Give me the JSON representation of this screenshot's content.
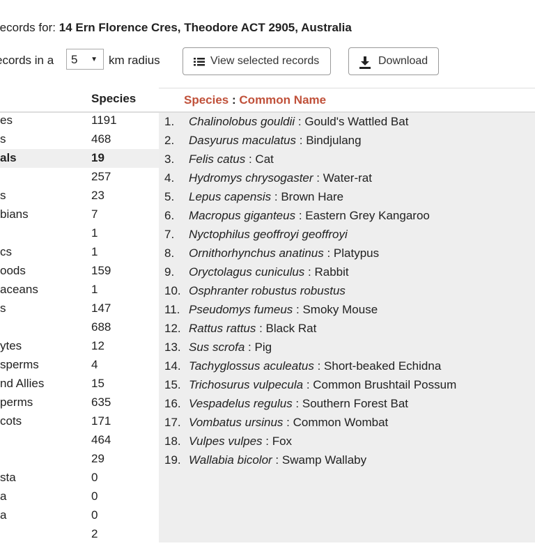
{
  "heading": {
    "prefix": "records for:",
    "address": "14 Ern Florence Cres, Theodore ACT 2905, Australia"
  },
  "radius": {
    "pre_label": "ecords in a",
    "value": "5",
    "post_label": "km radius"
  },
  "buttons": {
    "view_selected": "View selected records",
    "download": "Download"
  },
  "groups_table": {
    "header_species": "Species",
    "rows": [
      {
        "name": "es",
        "count": "1191"
      },
      {
        "name": "s",
        "count": "468"
      },
      {
        "name": "als",
        "count": "19",
        "selected": true
      },
      {
        "name": "",
        "count": "257"
      },
      {
        "name": "s",
        "count": "23"
      },
      {
        "name": "bians",
        "count": "7"
      },
      {
        "name": "",
        "count": "1"
      },
      {
        "name": "cs",
        "count": "1"
      },
      {
        "name": "oods",
        "count": "159"
      },
      {
        "name": "aceans",
        "count": "1"
      },
      {
        "name": "s",
        "count": "147"
      },
      {
        "name": "",
        "count": "688"
      },
      {
        "name": "ytes",
        "count": "12"
      },
      {
        "name": "sperms",
        "count": "4"
      },
      {
        "name": "nd Allies",
        "count": "15"
      },
      {
        "name": "perms",
        "count": "635"
      },
      {
        "name": "cots",
        "count": "171"
      },
      {
        "name": "",
        "count": "464"
      },
      {
        "name": "",
        "count": "29"
      },
      {
        "name": "sta",
        "count": "0"
      },
      {
        "name": "a",
        "count": "0"
      },
      {
        "name": "a",
        "count": "0"
      },
      {
        "name": "",
        "count": "2"
      }
    ]
  },
  "species_panel": {
    "header_species": "Species",
    "header_sep": ":",
    "header_common": "Common Name",
    "items": [
      {
        "num": "1.",
        "sci": "Chalinolobus gouldii",
        "sep": " : ",
        "common": "Gould's Wattled Bat"
      },
      {
        "num": "2.",
        "sci": "Dasyurus maculatus",
        "sep": " : ",
        "common": "Bindjulang"
      },
      {
        "num": "3.",
        "sci": "Felis catus",
        "sep": " : ",
        "common": "Cat"
      },
      {
        "num": "4.",
        "sci": "Hydromys chrysogaster",
        "sep": " : ",
        "common": "Water-rat"
      },
      {
        "num": "5.",
        "sci": "Lepus capensis",
        "sep": " : ",
        "common": "Brown Hare"
      },
      {
        "num": "6.",
        "sci": "Macropus giganteus",
        "sep": " : ",
        "common": "Eastern Grey Kangaroo"
      },
      {
        "num": "7.",
        "sci": "Nyctophilus geoffroyi geoffroyi",
        "sep": "",
        "common": ""
      },
      {
        "num": "8.",
        "sci": "Ornithorhynchus anatinus",
        "sep": " : ",
        "common": "Platypus"
      },
      {
        "num": "9.",
        "sci": "Oryctolagus cuniculus",
        "sep": " : ",
        "common": "Rabbit"
      },
      {
        "num": "10.",
        "sci": "Osphranter robustus robustus",
        "sep": "",
        "common": ""
      },
      {
        "num": "11.",
        "sci": "Pseudomys fumeus",
        "sep": " : ",
        "common": "Smoky Mouse"
      },
      {
        "num": "12.",
        "sci": "Rattus rattus",
        "sep": " : ",
        "common": "Black Rat"
      },
      {
        "num": "13.",
        "sci": "Sus scrofa",
        "sep": " : ",
        "common": "Pig"
      },
      {
        "num": "14.",
        "sci": "Tachyglossus aculeatus",
        "sep": " : ",
        "common": "Short-beaked Echidna"
      },
      {
        "num": "15.",
        "sci": "Trichosurus vulpecula",
        "sep": " : ",
        "common": "Common Brushtail Possum"
      },
      {
        "num": "16.",
        "sci": "Vespadelus regulus",
        "sep": " : ",
        "common": "Southern Forest Bat"
      },
      {
        "num": "17.",
        "sci": "Vombatus ursinus",
        "sep": " : ",
        "common": "Common Wombat"
      },
      {
        "num": "18.",
        "sci": "Vulpes vulpes",
        "sep": " : ",
        "common": "Fox"
      },
      {
        "num": "19.",
        "sci": "Wallabia bicolor",
        "sep": " : ",
        "common": "Swamp Wallaby"
      }
    ]
  },
  "colors": {
    "accent": "#c0513a",
    "panel_bg": "#eeeeee",
    "selected_row_bg": "#efefef",
    "text": "#212121"
  },
  "icons": {
    "view_selected": "list-icon",
    "download": "download-icon",
    "select": "caret-down-icon"
  }
}
